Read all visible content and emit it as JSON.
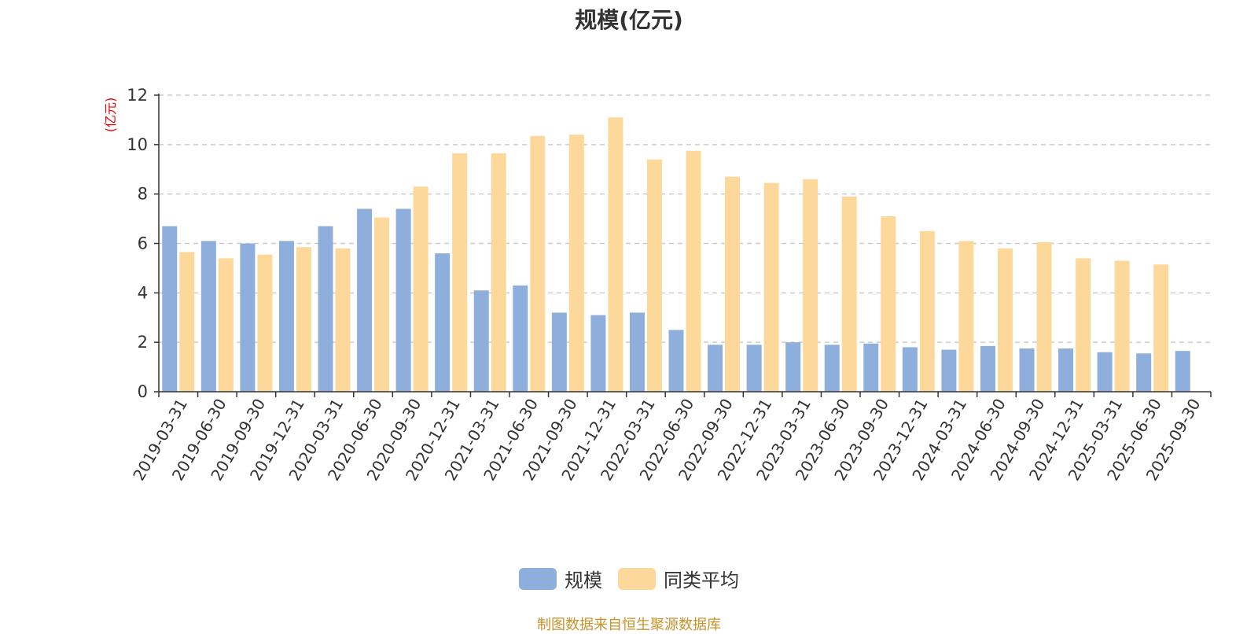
{
  "chart_data": {
    "type": "bar",
    "title": "规模(亿元)",
    "ylabel": "(亿元)",
    "xlabel": "",
    "ylim": [
      0,
      12
    ],
    "yticks": [
      0,
      2,
      4,
      6,
      8,
      10,
      12
    ],
    "grid": "dashed horizontal",
    "legend_position": "bottom-center",
    "categories": [
      "2019-03-31",
      "2019-06-30",
      "2019-09-30",
      "2019-12-31",
      "2020-03-31",
      "2020-06-30",
      "2020-09-30",
      "2020-12-31",
      "2021-03-31",
      "2021-06-30",
      "2021-09-30",
      "2021-12-31",
      "2022-03-31",
      "2022-06-30",
      "2022-09-30",
      "2022-12-31",
      "2023-03-31",
      "2023-06-30",
      "2023-09-30",
      "2023-12-31",
      "2024-03-31",
      "2024-06-30",
      "2024-09-30",
      "2024-12-31",
      "2025-03-31",
      "2025-06-30",
      "2025-09-30"
    ],
    "series": [
      {
        "name": "规模",
        "color": "#8eaedc",
        "values": [
          6.7,
          6.1,
          6.0,
          6.1,
          6.7,
          7.4,
          7.4,
          5.6,
          4.1,
          4.3,
          3.2,
          3.1,
          3.2,
          2.5,
          1.9,
          1.9,
          2.0,
          1.9,
          1.95,
          1.8,
          1.7,
          1.85,
          1.75,
          1.75,
          1.6,
          1.55,
          1.65
        ]
      },
      {
        "name": "同类平均",
        "color": "#fdd89b",
        "values": [
          5.65,
          5.4,
          5.55,
          5.85,
          5.8,
          7.05,
          8.3,
          9.65,
          9.65,
          10.35,
          10.4,
          11.1,
          9.4,
          9.75,
          8.7,
          8.45,
          8.6,
          7.9,
          7.1,
          6.5,
          6.1,
          5.8,
          6.05,
          5.4,
          5.3,
          5.15,
          null
        ]
      }
    ]
  },
  "legend": {
    "items": [
      {
        "label": "规模",
        "color": "#8eaedc"
      },
      {
        "label": "同类平均",
        "color": "#fdd89b"
      }
    ]
  },
  "source_note": "制图数据来自恒生聚源数据库"
}
